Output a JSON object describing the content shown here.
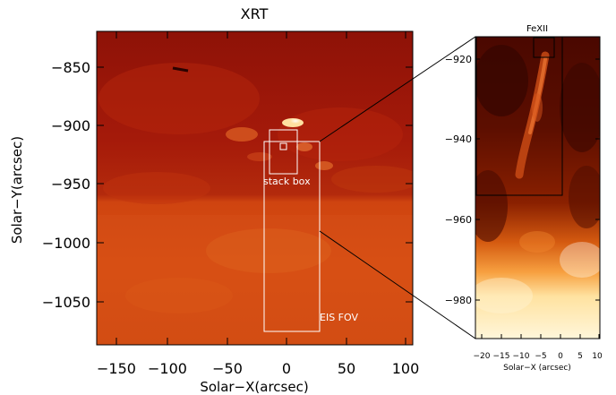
{
  "main_panel": {
    "title": "XRT",
    "x_label": "Solar−X(arcsec)",
    "y_label": "Solar−Y(arcsec)",
    "x_ticks": [
      "−150",
      "−100",
      "−50",
      "0",
      "50",
      "100"
    ],
    "y_ticks": [
      "−850",
      "−900",
      "−950",
      "−1000",
      "−1050"
    ],
    "box_labels": {
      "stack_box": "stack box",
      "eis_fov": "EIS FOV"
    }
  },
  "inset_panel": {
    "title": "FeXII",
    "x_label": "Solar−X (arcsec)",
    "x_ticks": [
      "−20",
      "−15",
      "−10",
      "−5",
      "0",
      "5",
      "10"
    ],
    "y_ticks": [
      "−920",
      "−940",
      "−960",
      "−980"
    ]
  },
  "colors": {
    "main_dark": "#a8190a",
    "main_limb": "#d3460f",
    "inset_dark": "#3a0500",
    "inset_bright": "#fff2cc",
    "box_outline": "#ffffff"
  }
}
